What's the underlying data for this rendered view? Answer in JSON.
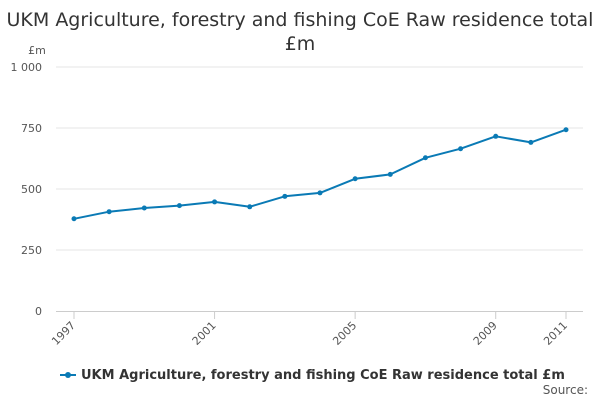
{
  "chart_data": {
    "type": "line",
    "title": "UKM Agriculture, forestry and fishing CoE Raw residence total £m",
    "ylabel": "£m",
    "xlabel": "",
    "x": [
      1997,
      1998,
      1999,
      2000,
      2001,
      2002,
      2003,
      2004,
      2005,
      2006,
      2007,
      2008,
      2009,
      2010,
      2011
    ],
    "x_tick_labels": [
      "1997",
      "2001",
      "2005",
      "2009",
      "2011"
    ],
    "x_tick_values": [
      1997,
      2001,
      2005,
      2009,
      2011
    ],
    "y_tick_labels": [
      "0",
      "250",
      "500",
      "750",
      "1 000"
    ],
    "y_tick_values": [
      0,
      250,
      500,
      750,
      1000
    ],
    "ylim": [
      0,
      1000
    ],
    "grid": "horizontal",
    "legend_position": "bottom-left",
    "series": [
      {
        "name": "UKM Agriculture, forestry and fishing CoE Raw residence total £m",
        "color": "#0a7ab5",
        "values": [
          378,
          407,
          422,
          432,
          447,
          427,
          470,
          484,
          542,
          560,
          628,
          665,
          716,
          691,
          743
        ]
      }
    ]
  },
  "source_label": "Source:"
}
